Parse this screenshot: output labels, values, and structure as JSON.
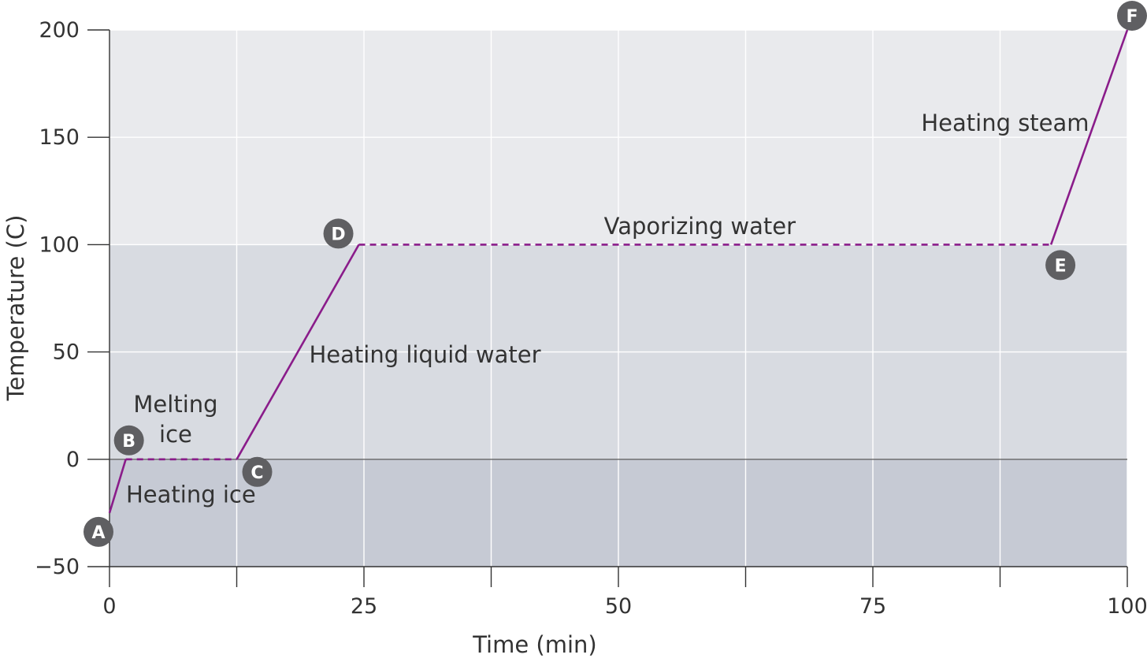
{
  "chart_data": {
    "type": "line",
    "title": "",
    "xlabel": "Time (min)",
    "ylabel": "Temperature (C)",
    "xlim": [
      0,
      100
    ],
    "ylim": [
      -50,
      200
    ],
    "x_ticks": [
      0,
      25,
      50,
      75,
      100
    ],
    "x_tick_labels": [
      "0",
      "25",
      "50",
      "75",
      "100"
    ],
    "x_minor_ticks": [
      12.5,
      37.5,
      62.5,
      87.5
    ],
    "y_ticks": [
      -50,
      0,
      50,
      100,
      150,
      200
    ],
    "y_tick_labels": [
      "−50",
      "0",
      "50",
      "100",
      "150",
      "200"
    ],
    "grid": true,
    "regions": [
      {
        "from": -50,
        "to": 0,
        "color": "#c6cad4"
      },
      {
        "from": 0,
        "to": 100,
        "color": "#d8dbe1"
      },
      {
        "from": 100,
        "to": 200,
        "color": "#e9eaed"
      }
    ],
    "line_color": "#8a1c8a",
    "segments": [
      {
        "points": [
          [
            0,
            -25
          ],
          [
            1.6,
            0
          ]
        ],
        "style": "solid"
      },
      {
        "points": [
          [
            1.6,
            0
          ],
          [
            12.5,
            0
          ]
        ],
        "style": "dashed"
      },
      {
        "points": [
          [
            12.5,
            0
          ],
          [
            24.5,
            100
          ]
        ],
        "style": "solid"
      },
      {
        "points": [
          [
            24.5,
            100
          ],
          [
            92.5,
            100
          ]
        ],
        "style": "dashed"
      },
      {
        "points": [
          [
            92.5,
            100
          ],
          [
            100,
            200
          ]
        ],
        "style": "solid"
      }
    ],
    "points": [
      {
        "label": "A",
        "x": 0,
        "y": -25
      },
      {
        "label": "B",
        "x": 1.6,
        "y": 0
      },
      {
        "label": "C",
        "x": 12.5,
        "y": 0
      },
      {
        "label": "D",
        "x": 24.5,
        "y": 100
      },
      {
        "label": "E",
        "x": 92.5,
        "y": 100
      },
      {
        "label": "F",
        "x": 100,
        "y": 200
      }
    ],
    "annotations": [
      {
        "text": "Heating ice",
        "x": 8,
        "y": -20
      },
      {
        "text": "Melting",
        "x": 6.5,
        "y": 22
      },
      {
        "text": "ice",
        "x": 6.5,
        "y": 8
      },
      {
        "text": "Heating liquid water",
        "x": 31,
        "y": 45
      },
      {
        "text": "Vaporizing water",
        "x": 58,
        "y": 105
      },
      {
        "text": "Heating steam",
        "x": 88,
        "y": 153
      }
    ]
  }
}
